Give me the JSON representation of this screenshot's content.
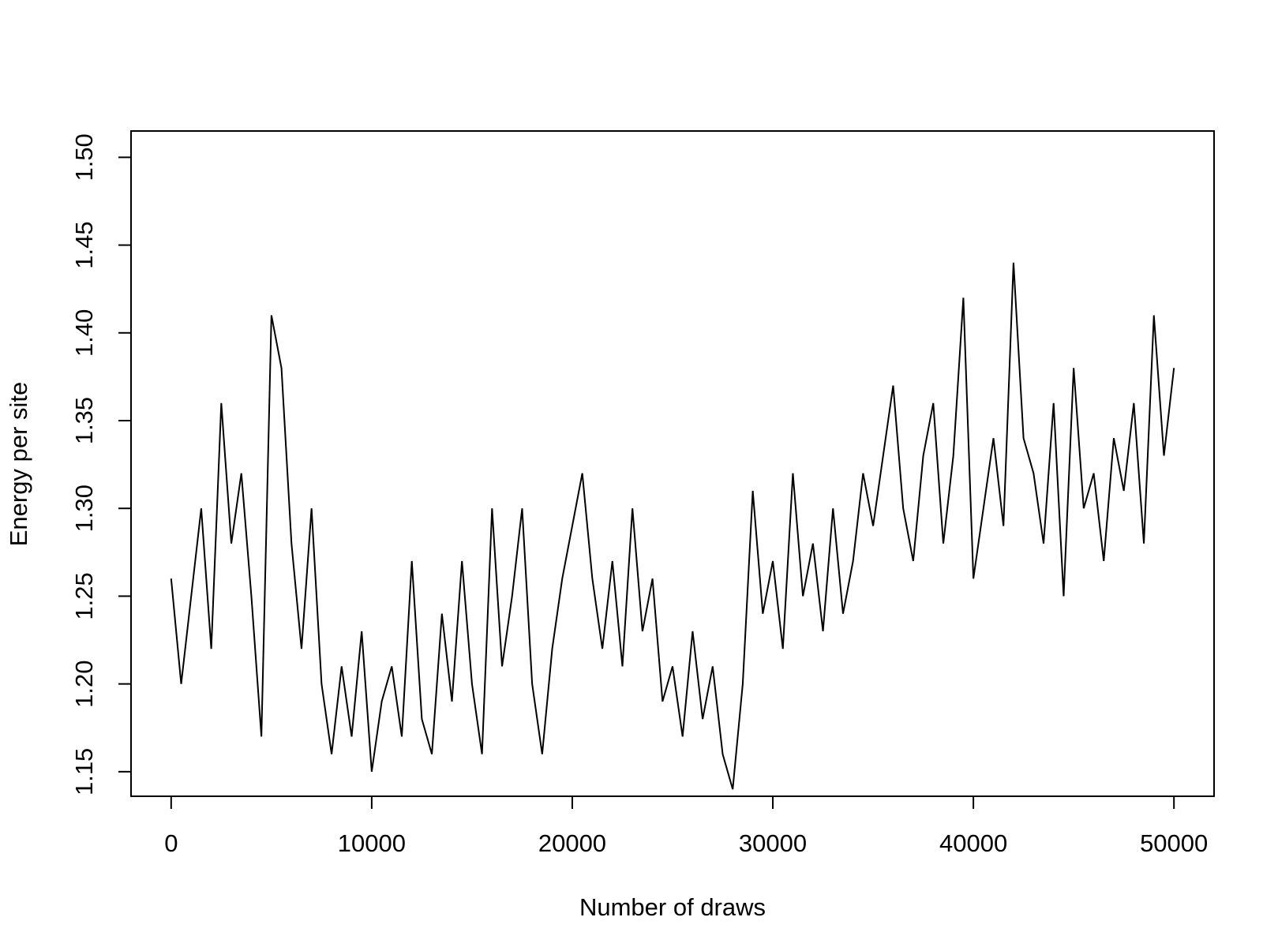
{
  "chart_data": {
    "type": "line",
    "x_label": "Number of draws",
    "y_label": "Energy per site",
    "x": [
      0,
      500,
      1000,
      1500,
      2000,
      2500,
      3000,
      3500,
      4000,
      4500,
      5000,
      5500,
      6000,
      6500,
      7000,
      7500,
      8000,
      8500,
      9000,
      9500,
      10000,
      10500,
      11000,
      11500,
      12000,
      12500,
      13000,
      13500,
      14000,
      14500,
      15000,
      15500,
      16000,
      16500,
      17000,
      17500,
      18000,
      18500,
      19000,
      19500,
      20000,
      20500,
      21000,
      21500,
      22000,
      22500,
      23000,
      23500,
      24000,
      24500,
      25000,
      25500,
      26000,
      26500,
      27000,
      27500,
      28000,
      28500,
      29000,
      29500,
      30000,
      30500,
      31000,
      31500,
      32000,
      32500,
      33000,
      33500,
      34000,
      34500,
      35000,
      35500,
      36000,
      36500,
      37000,
      37500,
      38000,
      38500,
      39000,
      39500,
      40000,
      40500,
      41000,
      41500,
      42000,
      42500,
      43000,
      43500,
      44000,
      44500,
      45000,
      45500,
      46000,
      46500,
      47000,
      47500,
      48000,
      48500,
      49000,
      49500,
      50000
    ],
    "series": [
      {
        "name": "Energy per site",
        "color": "#000000",
        "values": [
          1.26,
          1.2,
          1.25,
          1.3,
          1.22,
          1.36,
          1.28,
          1.32,
          1.25,
          1.17,
          1.41,
          1.38,
          1.28,
          1.22,
          1.3,
          1.2,
          1.16,
          1.21,
          1.17,
          1.23,
          1.15,
          1.19,
          1.21,
          1.17,
          1.27,
          1.18,
          1.16,
          1.24,
          1.19,
          1.27,
          1.2,
          1.16,
          1.3,
          1.21,
          1.25,
          1.3,
          1.2,
          1.16,
          1.22,
          1.26,
          1.29,
          1.32,
          1.26,
          1.22,
          1.27,
          1.21,
          1.3,
          1.23,
          1.26,
          1.19,
          1.21,
          1.17,
          1.23,
          1.18,
          1.21,
          1.16,
          1.14,
          1.2,
          1.31,
          1.24,
          1.27,
          1.22,
          1.32,
          1.25,
          1.28,
          1.23,
          1.3,
          1.24,
          1.27,
          1.32,
          1.29,
          1.33,
          1.37,
          1.3,
          1.27,
          1.33,
          1.36,
          1.28,
          1.33,
          1.42,
          1.26,
          1.3,
          1.34,
          1.29,
          1.44,
          1.34,
          1.32,
          1.28,
          1.36,
          1.25,
          1.38,
          1.3,
          1.32,
          1.27,
          1.34,
          1.31,
          1.36,
          1.28,
          1.41,
          1.33,
          1.38
        ]
      }
    ],
    "xlim": [
      -2000,
      52000
    ],
    "ylim": [
      1.136,
      1.515
    ],
    "xticks": [
      0,
      10000,
      20000,
      30000,
      40000,
      50000
    ],
    "yticks": [
      1.15,
      {
        "value": 1.2,
        "label": "1.20"
      },
      1.25,
      {
        "value": 1.3,
        "label": "1.30"
      },
      1.35,
      {
        "value": 1.4,
        "label": "1.40"
      },
      1.45,
      {
        "value": 1.5,
        "label": "1.50"
      }
    ],
    "grid": false
  }
}
